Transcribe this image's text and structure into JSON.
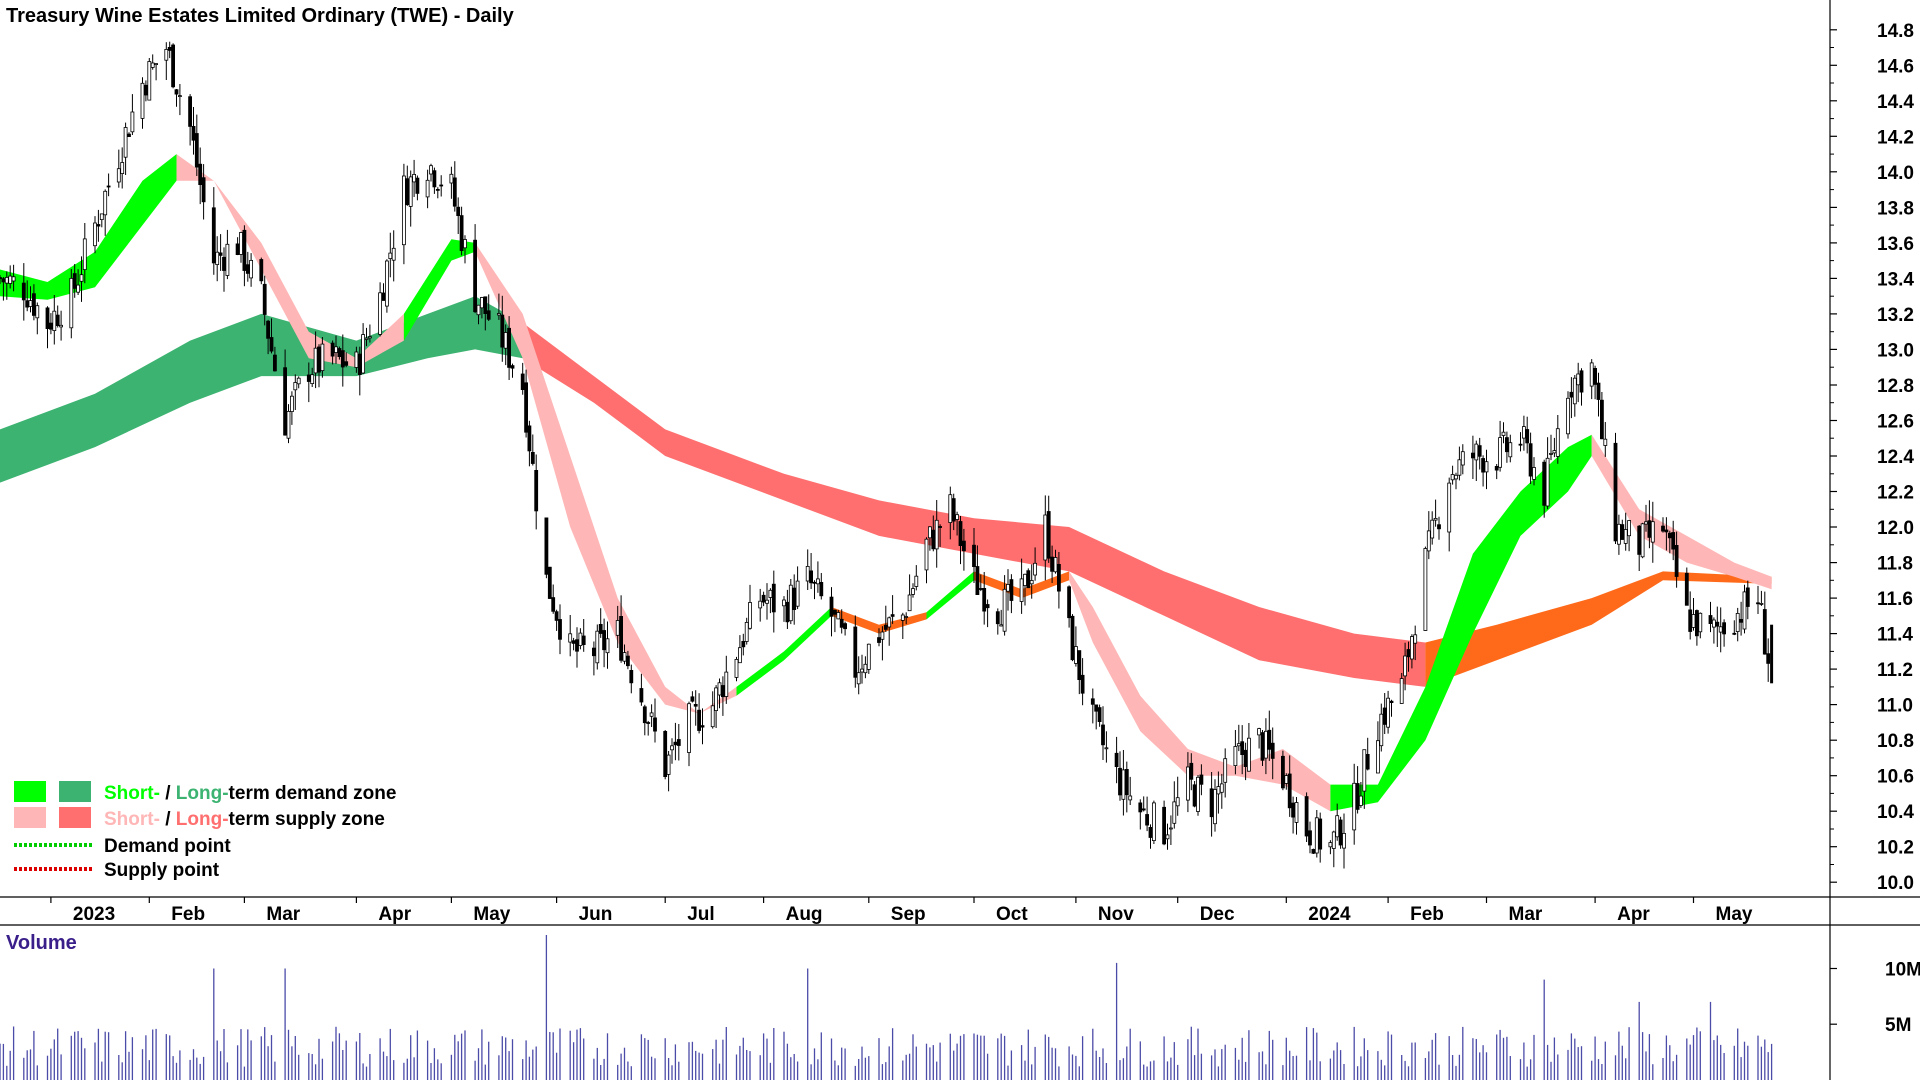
{
  "chart_data": {
    "type": "candlestick",
    "title": "Treasury Wine Estates Limited Ordinary (TWE) - Daily",
    "price_axis": {
      "ylim": [
        9.9,
        14.9
      ],
      "ticks": [
        "14.8",
        "14.6",
        "14.4",
        "14.2",
        "14.0",
        "13.8",
        "13.6",
        "13.4",
        "13.2",
        "13.0",
        "12.8",
        "12.6",
        "12.4",
        "12.2",
        "12.0",
        "11.8",
        "11.6",
        "11.4",
        "11.2",
        "11.0",
        "10.8",
        "10.6",
        "10.4",
        "10.2",
        "10.0"
      ]
    },
    "time_axis": {
      "start": "2022-12-19",
      "end": "2024-05-25",
      "tick_labels": [
        "2023",
        "Feb",
        "Mar",
        "Apr",
        "May",
        "Jun",
        "Jul",
        "Aug",
        "Sep",
        "Oct",
        "Nov",
        "Dec",
        "2024",
        "Feb",
        "Mar",
        "Apr",
        "May"
      ]
    },
    "close_series": [
      [
        "2022-12-19",
        13.4
      ],
      [
        "2022-12-26",
        13.35
      ],
      [
        "2023-01-02",
        13.15
      ],
      [
        "2023-01-09",
        13.3
      ],
      [
        "2023-01-16",
        13.7
      ],
      [
        "2023-01-23",
        14.1
      ],
      [
        "2023-01-30",
        14.5
      ],
      [
        "2023-02-06",
        14.7
      ],
      [
        "2023-02-13",
        14.25
      ],
      [
        "2023-02-20",
        13.5
      ],
      [
        "2023-02-27",
        13.6
      ],
      [
        "2023-03-06",
        13.3
      ],
      [
        "2023-03-13",
        12.6
      ],
      [
        "2023-03-20",
        12.9
      ],
      [
        "2023-03-27",
        12.95
      ],
      [
        "2023-04-03",
        12.9
      ],
      [
        "2023-04-10",
        13.3
      ],
      [
        "2023-04-17",
        13.9
      ],
      [
        "2023-04-24",
        14.05
      ],
      [
        "2023-05-01",
        13.9
      ],
      [
        "2023-05-08",
        13.3
      ],
      [
        "2023-05-15",
        13.1
      ],
      [
        "2023-05-22",
        12.8
      ],
      [
        "2023-05-29",
        11.7
      ],
      [
        "2023-06-05",
        11.3
      ],
      [
        "2023-06-12",
        11.3
      ],
      [
        "2023-06-19",
        11.4
      ],
      [
        "2023-06-26",
        11.05
      ],
      [
        "2023-07-03",
        10.65
      ],
      [
        "2023-07-10",
        10.9
      ],
      [
        "2023-07-17",
        11.0
      ],
      [
        "2023-07-24",
        11.3
      ],
      [
        "2023-07-31",
        11.6
      ],
      [
        "2023-08-07",
        11.55
      ],
      [
        "2023-08-14",
        11.7
      ],
      [
        "2023-08-21",
        11.5
      ],
      [
        "2023-08-28",
        11.2
      ],
      [
        "2023-09-04",
        11.4
      ],
      [
        "2023-09-11",
        11.5
      ],
      [
        "2023-09-18",
        11.9
      ],
      [
        "2023-09-25",
        12.1
      ],
      [
        "2023-10-02",
        11.7
      ],
      [
        "2023-10-09",
        11.55
      ],
      [
        "2023-10-16",
        11.6
      ],
      [
        "2023-10-23",
        12.0
      ],
      [
        "2023-10-30",
        11.4
      ],
      [
        "2023-11-06",
        10.9
      ],
      [
        "2023-11-13",
        10.6
      ],
      [
        "2023-11-20",
        10.4
      ],
      [
        "2023-11-27",
        10.3
      ],
      [
        "2023-12-04",
        10.55
      ],
      [
        "2023-12-11",
        10.45
      ],
      [
        "2023-12-18",
        10.7
      ],
      [
        "2023-12-25",
        10.8
      ],
      [
        "2024-01-01",
        10.6
      ],
      [
        "2024-01-08",
        10.3
      ],
      [
        "2024-01-15",
        10.2
      ],
      [
        "2024-01-22",
        10.45
      ],
      [
        "2024-01-29",
        10.9
      ],
      [
        "2024-02-05",
        11.1
      ],
      [
        "2024-02-12",
        11.8
      ],
      [
        "2024-02-19",
        12.3
      ],
      [
        "2024-02-26",
        12.4
      ],
      [
        "2024-03-04",
        12.4
      ],
      [
        "2024-03-11",
        12.5
      ],
      [
        "2024-03-18",
        12.2
      ],
      [
        "2024-03-25",
        12.8
      ],
      [
        "2024-04-01",
        12.9
      ],
      [
        "2024-04-08",
        12.0
      ],
      [
        "2024-04-15",
        11.9
      ],
      [
        "2024-04-22",
        12.0
      ],
      [
        "2024-04-29",
        11.5
      ],
      [
        "2024-05-06",
        11.4
      ],
      [
        "2024-05-13",
        11.5
      ],
      [
        "2024-05-20",
        11.6
      ],
      [
        "2024-05-24",
        11.15
      ]
    ],
    "zones": {
      "short_term": {
        "upper": [
          [
            "2022-12-19",
            13.45
          ],
          [
            "2023-01-02",
            13.38
          ],
          [
            "2023-01-16",
            13.55
          ],
          [
            "2023-01-30",
            13.95
          ],
          [
            "2023-02-09",
            14.1
          ],
          [
            "2023-02-20",
            13.95
          ],
          [
            "2023-03-06",
            13.6
          ],
          [
            "2023-03-20",
            13.1
          ],
          [
            "2023-04-03",
            12.95
          ],
          [
            "2023-04-17",
            13.2
          ],
          [
            "2023-05-01",
            13.62
          ],
          [
            "2023-05-08",
            13.6
          ],
          [
            "2023-05-22",
            13.2
          ],
          [
            "2023-06-05",
            12.4
          ],
          [
            "2023-06-19",
            11.6
          ],
          [
            "2023-07-03",
            11.1
          ],
          [
            "2023-07-13",
            10.95
          ],
          [
            "2023-07-24",
            11.1
          ],
          [
            "2023-08-07",
            11.3
          ],
          [
            "2023-08-21",
            11.55
          ],
          [
            "2023-09-04",
            11.45
          ],
          [
            "2023-09-18",
            11.52
          ],
          [
            "2023-10-02",
            11.75
          ],
          [
            "2023-10-16",
            11.65
          ],
          [
            "2023-10-30",
            11.75
          ],
          [
            "2023-11-06",
            11.55
          ],
          [
            "2023-11-20",
            11.05
          ],
          [
            "2023-12-04",
            10.75
          ],
          [
            "2023-12-18",
            10.65
          ],
          [
            "2024-01-01",
            10.75
          ],
          [
            "2024-01-15",
            10.55
          ],
          [
            "2024-01-29",
            10.55
          ],
          [
            "2024-02-12",
            11.1
          ],
          [
            "2024-02-26",
            11.85
          ],
          [
            "2024-03-11",
            12.2
          ],
          [
            "2024-03-25",
            12.45
          ],
          [
            "2024-04-01",
            12.52
          ],
          [
            "2024-04-15",
            12.1
          ],
          [
            "2024-04-29",
            11.95
          ],
          [
            "2024-05-13",
            11.8
          ],
          [
            "2024-05-24",
            11.72
          ]
        ],
        "lower": [
          [
            "2022-12-19",
            13.3
          ],
          [
            "2023-01-02",
            13.28
          ],
          [
            "2023-01-16",
            13.35
          ],
          [
            "2023-01-30",
            13.7
          ],
          [
            "2023-02-09",
            13.95
          ],
          [
            "2023-02-20",
            13.95
          ],
          [
            "2023-03-06",
            13.45
          ],
          [
            "2023-03-20",
            12.95
          ],
          [
            "2023-04-03",
            12.9
          ],
          [
            "2023-04-17",
            13.05
          ],
          [
            "2023-05-01",
            13.5
          ],
          [
            "2023-05-08",
            13.55
          ],
          [
            "2023-05-22",
            12.95
          ],
          [
            "2023-06-05",
            12.0
          ],
          [
            "2023-06-19",
            11.35
          ],
          [
            "2023-07-03",
            11.0
          ],
          [
            "2023-07-13",
            10.95
          ],
          [
            "2023-07-24",
            11.05
          ],
          [
            "2023-08-07",
            11.25
          ],
          [
            "2023-08-21",
            11.5
          ],
          [
            "2023-09-04",
            11.4
          ],
          [
            "2023-09-18",
            11.48
          ],
          [
            "2023-10-02",
            11.7
          ],
          [
            "2023-10-16",
            11.6
          ],
          [
            "2023-10-30",
            11.7
          ],
          [
            "2023-11-06",
            11.35
          ],
          [
            "2023-11-20",
            10.85
          ],
          [
            "2023-12-04",
            10.6
          ],
          [
            "2023-12-18",
            10.6
          ],
          [
            "2024-01-01",
            10.55
          ],
          [
            "2024-01-15",
            10.4
          ],
          [
            "2024-01-29",
            10.45
          ],
          [
            "2024-02-12",
            10.8
          ],
          [
            "2024-02-26",
            11.4
          ],
          [
            "2024-03-11",
            11.95
          ],
          [
            "2024-03-25",
            12.2
          ],
          [
            "2024-04-01",
            12.4
          ],
          [
            "2024-04-15",
            11.95
          ],
          [
            "2024-04-29",
            11.8
          ],
          [
            "2024-05-13",
            11.72
          ],
          [
            "2024-05-24",
            11.65
          ]
        ]
      },
      "long_term": {
        "upper": [
          [
            "2022-12-19",
            12.55
          ],
          [
            "2023-01-16",
            12.75
          ],
          [
            "2023-02-13",
            13.05
          ],
          [
            "2023-03-06",
            13.2
          ],
          [
            "2023-04-03",
            13.05
          ],
          [
            "2023-04-24",
            13.2
          ],
          [
            "2023-05-08",
            13.3
          ],
          [
            "2023-05-22",
            13.15
          ],
          [
            "2023-06-12",
            12.85
          ],
          [
            "2023-07-03",
            12.55
          ],
          [
            "2023-08-07",
            12.3
          ],
          [
            "2023-09-04",
            12.15
          ],
          [
            "2023-10-02",
            12.05
          ],
          [
            "2023-10-30",
            12.0
          ],
          [
            "2023-11-27",
            11.75
          ],
          [
            "2023-12-25",
            11.55
          ],
          [
            "2024-01-22",
            11.4
          ],
          [
            "2024-02-12",
            11.35
          ],
          [
            "2024-03-04",
            11.45
          ],
          [
            "2024-04-01",
            11.6
          ],
          [
            "2024-04-22",
            11.75
          ],
          [
            "2024-05-24",
            11.72
          ]
        ],
        "lower": [
          [
            "2022-12-19",
            12.25
          ],
          [
            "2023-01-16",
            12.45
          ],
          [
            "2023-02-13",
            12.7
          ],
          [
            "2023-03-06",
            12.85
          ],
          [
            "2023-04-03",
            12.85
          ],
          [
            "2023-04-24",
            12.95
          ],
          [
            "2023-05-08",
            13.0
          ],
          [
            "2023-05-22",
            12.95
          ],
          [
            "2023-06-12",
            12.7
          ],
          [
            "2023-07-03",
            12.4
          ],
          [
            "2023-08-07",
            12.15
          ],
          [
            "2023-09-04",
            11.95
          ],
          [
            "2023-10-02",
            11.85
          ],
          [
            "2023-10-30",
            11.75
          ],
          [
            "2023-11-27",
            11.5
          ],
          [
            "2023-12-25",
            11.25
          ],
          [
            "2024-01-22",
            11.15
          ],
          [
            "2024-02-12",
            11.1
          ],
          [
            "2024-03-04",
            11.25
          ],
          [
            "2024-04-01",
            11.45
          ],
          [
            "2024-04-22",
            11.7
          ],
          [
            "2024-05-24",
            11.68
          ]
        ]
      }
    },
    "volume": {
      "title": "Volume",
      "ylim": [
        0,
        13
      ],
      "ticks": [
        "10M",
        "5M"
      ],
      "spikes": [
        [
          "2023-02-20",
          10
        ],
        [
          "2023-03-13",
          10
        ],
        [
          "2023-05-29",
          13
        ],
        [
          "2023-08-14",
          10
        ],
        [
          "2023-11-13",
          10.5
        ],
        [
          "2024-03-18",
          9
        ],
        [
          "2024-04-15",
          7
        ],
        [
          "2024-05-06",
          7
        ]
      ]
    },
    "legend": [
      {
        "label_parts": [
          "Short-",
          " / ",
          "Long-",
          "term demand zone"
        ],
        "colors": [
          "#00ff00",
          "#000000",
          "#3cb371",
          "#000000"
        ]
      },
      {
        "label_parts": [
          "Short-",
          " / ",
          "Long-",
          "term supply zone"
        ],
        "colors": [
          "#ffb6b6",
          "#000000",
          "#ff6f6f",
          "#000000"
        ]
      },
      {
        "label": "Demand point",
        "color": "#00cc00"
      },
      {
        "label": "Supply point",
        "color": "#dd0000"
      }
    ],
    "colors": {
      "short_demand": "#00ff00",
      "long_demand": "#3cb371",
      "short_supply": "#ffb6b6",
      "long_supply": "#ff6f6f",
      "crossover": "#ff6a1a",
      "volume_bar": "#4b4ba8",
      "candle": "#000000"
    }
  }
}
